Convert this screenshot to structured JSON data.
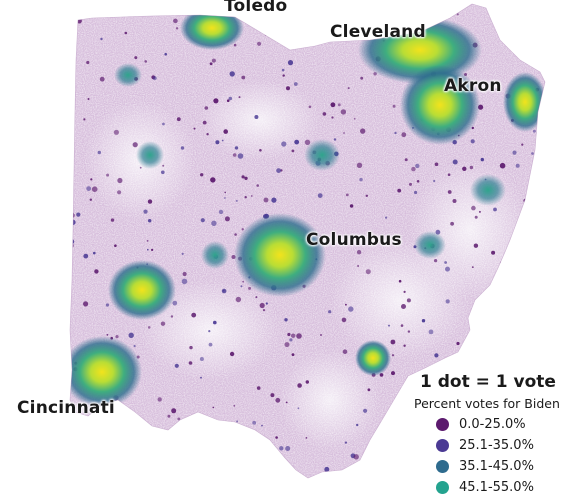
{
  "map": {
    "state": "Ohio",
    "cities": [
      {
        "id": "toledo",
        "name": "Toledo"
      },
      {
        "id": "cleveland",
        "name": "Cleveland"
      },
      {
        "id": "akron",
        "name": "Akron"
      },
      {
        "id": "columbus",
        "name": "Columbus"
      },
      {
        "id": "cincinnati",
        "name": "Cincinnati"
      }
    ]
  },
  "legend": {
    "title": "1 dot = 1 vote",
    "subtitle": "Percent votes for Biden",
    "items": [
      {
        "label": "0.0-25.0%",
        "color": "#5c1a6e"
      },
      {
        "label": "25.1-35.0%",
        "color": "#4b3a94"
      },
      {
        "label": "35.1-45.0%",
        "color": "#2e6b8e"
      },
      {
        "label": "45.1-55.0%",
        "color": "#24a38f"
      }
    ]
  },
  "colors": {
    "base": "#c9a8d0",
    "light": "#e6d8ea",
    "high": "#8ed35a",
    "highest": "#f2e31c"
  }
}
